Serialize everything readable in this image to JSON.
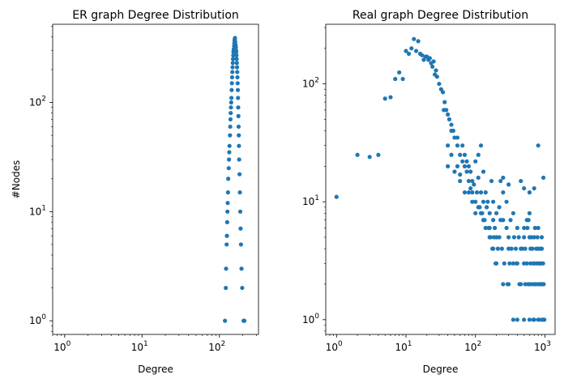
{
  "chart_data": [
    {
      "type": "scatter",
      "title": "ER graph Degree Distribution",
      "xlabel": "Degree",
      "ylabel": "#Nodes",
      "xscale": "log",
      "yscale": "log",
      "xlim": [
        0.7,
        320
      ],
      "ylim": [
        0.75,
        520
      ],
      "xticks": [
        {
          "value": 1,
          "base": "10",
          "exp": "0"
        },
        {
          "value": 10,
          "base": "10",
          "exp": "1"
        },
        {
          "value": 100,
          "base": "10",
          "exp": "2"
        }
      ],
      "yticks": [
        {
          "value": 1,
          "base": "10",
          "exp": "0"
        },
        {
          "value": 10,
          "base": "10",
          "exp": "1"
        },
        {
          "value": 100,
          "base": "10",
          "exp": "2"
        }
      ],
      "marker_color": "#1f77b4",
      "grid": false,
      "points": [
        [
          118,
          1
        ],
        [
          121,
          2
        ],
        [
          122,
          3
        ],
        [
          124,
          5
        ],
        [
          125,
          6
        ],
        [
          126,
          8
        ],
        [
          127,
          10
        ],
        [
          128,
          12
        ],
        [
          129,
          15
        ],
        [
          130,
          20
        ],
        [
          132,
          25
        ],
        [
          133,
          30
        ],
        [
          134,
          35
        ],
        [
          135,
          40
        ],
        [
          137,
          50
        ],
        [
          138,
          60
        ],
        [
          139,
          70
        ],
        [
          140,
          80
        ],
        [
          141,
          90
        ],
        [
          142,
          100
        ],
        [
          143,
          110
        ],
        [
          144,
          130
        ],
        [
          145,
          150
        ],
        [
          146,
          170
        ],
        [
          147,
          190
        ],
        [
          148,
          210
        ],
        [
          149,
          230
        ],
        [
          150,
          250
        ],
        [
          151,
          270
        ],
        [
          152,
          290
        ],
        [
          153,
          300
        ],
        [
          154,
          310
        ],
        [
          155,
          330
        ],
        [
          156,
          350
        ],
        [
          157,
          370
        ],
        [
          158,
          380
        ],
        [
          159,
          390
        ],
        [
          160,
          360
        ],
        [
          161,
          340
        ],
        [
          162,
          330
        ],
        [
          163,
          320
        ],
        [
          164,
          300
        ],
        [
          165,
          290
        ],
        [
          166,
          270
        ],
        [
          167,
          250
        ],
        [
          168,
          230
        ],
        [
          169,
          210
        ],
        [
          170,
          190
        ],
        [
          171,
          170
        ],
        [
          172,
          150
        ],
        [
          173,
          130
        ],
        [
          174,
          110
        ],
        [
          175,
          90
        ],
        [
          176,
          75
        ],
        [
          177,
          60
        ],
        [
          178,
          50
        ],
        [
          179,
          40
        ],
        [
          180,
          30
        ],
        [
          182,
          22
        ],
        [
          184,
          15
        ],
        [
          186,
          10
        ],
        [
          188,
          7
        ],
        [
          190,
          5
        ],
        [
          193,
          3
        ],
        [
          197,
          2
        ],
        [
          205,
          1
        ],
        [
          210,
          1
        ]
      ]
    },
    {
      "type": "scatter",
      "title": "Real graph Degree Distribution",
      "xlabel": "Degree",
      "ylabel": "",
      "xscale": "log",
      "yscale": "log",
      "xlim": [
        0.7,
        1400
      ],
      "ylim": [
        0.75,
        320
      ],
      "xticks": [
        {
          "value": 1,
          "base": "10",
          "exp": "0"
        },
        {
          "value": 10,
          "base": "10",
          "exp": "1"
        },
        {
          "value": 100,
          "base": "10",
          "exp": "2"
        },
        {
          "value": 1000,
          "base": "10",
          "exp": "3"
        }
      ],
      "yticks": [
        {
          "value": 1,
          "base": "10",
          "exp": "0"
        },
        {
          "value": 10,
          "base": "10",
          "exp": "1"
        },
        {
          "value": 100,
          "base": "10",
          "exp": "2"
        }
      ],
      "marker_color": "#1f77b4",
      "grid": false,
      "points": [
        [
          1,
          11
        ],
        [
          2,
          25
        ],
        [
          3,
          24
        ],
        [
          4,
          25
        ],
        [
          5,
          75
        ],
        [
          6,
          77
        ],
        [
          7,
          110
        ],
        [
          8,
          125
        ],
        [
          9,
          110
        ],
        [
          10,
          190
        ],
        [
          11,
          180
        ],
        [
          12,
          200
        ],
        [
          13,
          240
        ],
        [
          14,
          190
        ],
        [
          15,
          230
        ],
        [
          16,
          180
        ],
        [
          17,
          175
        ],
        [
          18,
          160
        ],
        [
          19,
          170
        ],
        [
          20,
          170
        ],
        [
          21,
          160
        ],
        [
          22,
          165
        ],
        [
          23,
          150
        ],
        [
          24,
          140
        ],
        [
          25,
          155
        ],
        [
          26,
          120
        ],
        [
          27,
          130
        ],
        [
          28,
          115
        ],
        [
          30,
          100
        ],
        [
          32,
          90
        ],
        [
          34,
          85
        ],
        [
          36,
          70
        ],
        [
          38,
          60
        ],
        [
          40,
          55
        ],
        [
          42,
          50
        ],
        [
          45,
          45
        ],
        [
          48,
          40
        ],
        [
          50,
          35
        ],
        [
          55,
          30
        ],
        [
          60,
          25
        ],
        [
          65,
          22
        ],
        [
          70,
          20
        ],
        [
          75,
          18
        ],
        [
          80,
          15
        ],
        [
          85,
          13
        ],
        [
          90,
          12
        ],
        [
          100,
          10
        ],
        [
          110,
          9
        ],
        [
          120,
          8
        ],
        [
          130,
          7
        ],
        [
          140,
          6
        ],
        [
          160,
          5
        ],
        [
          180,
          4
        ],
        [
          200,
          3
        ],
        [
          250,
          2
        ],
        [
          300,
          2
        ],
        [
          350,
          1
        ],
        [
          400,
          1
        ],
        [
          500,
          1
        ],
        [
          600,
          1
        ],
        [
          700,
          1
        ],
        [
          800,
          1
        ],
        [
          900,
          1
        ],
        [
          40,
          30
        ],
        [
          45,
          25
        ],
        [
          55,
          20
        ],
        [
          60,
          15
        ],
        [
          70,
          12
        ],
        [
          80,
          20
        ],
        [
          90,
          15
        ],
        [
          100,
          8
        ],
        [
          110,
          25
        ],
        [
          120,
          30
        ],
        [
          130,
          18
        ],
        [
          140,
          12
        ],
        [
          150,
          10
        ],
        [
          160,
          8
        ],
        [
          170,
          15
        ],
        [
          180,
          10
        ],
        [
          190,
          6
        ],
        [
          200,
          8
        ],
        [
          220,
          5
        ],
        [
          240,
          4
        ],
        [
          250,
          12
        ],
        [
          280,
          10
        ],
        [
          300,
          5
        ],
        [
          320,
          7
        ],
        [
          350,
          8
        ],
        [
          380,
          4
        ],
        [
          400,
          6
        ],
        [
          420,
          5
        ],
        [
          450,
          4
        ],
        [
          500,
          3
        ],
        [
          550,
          7
        ],
        [
          600,
          5
        ],
        [
          650,
          2
        ],
        [
          700,
          3
        ],
        [
          750,
          4
        ],
        [
          800,
          2
        ],
        [
          850,
          3
        ],
        [
          900,
          5
        ],
        [
          40,
          20
        ],
        [
          50,
          18
        ],
        [
          60,
          17
        ],
        [
          70,
          25
        ],
        [
          80,
          12
        ],
        [
          90,
          10
        ],
        [
          100,
          22
        ],
        [
          110,
          16
        ],
        [
          120,
          12
        ],
        [
          130,
          10
        ],
        [
          160,
          6
        ],
        [
          180,
          7
        ],
        [
          200,
          5
        ],
        [
          220,
          9
        ],
        [
          250,
          7
        ],
        [
          280,
          6
        ],
        [
          300,
          4
        ],
        [
          350,
          3
        ],
        [
          400,
          3
        ],
        [
          450,
          2
        ],
        [
          500,
          5
        ],
        [
          550,
          3
        ],
        [
          600,
          2
        ],
        [
          700,
          2
        ],
        [
          800,
          6
        ],
        [
          900,
          2
        ],
        [
          35,
          60
        ],
        [
          45,
          40
        ],
        [
          55,
          35
        ],
        [
          65,
          30
        ],
        [
          75,
          22
        ],
        [
          85,
          18
        ],
        [
          95,
          14
        ],
        [
          105,
          12
        ],
        [
          115,
          9
        ],
        [
          125,
          8
        ],
        [
          135,
          7
        ],
        [
          145,
          9
        ],
        [
          155,
          6
        ],
        [
          165,
          5
        ],
        [
          175,
          4
        ],
        [
          185,
          5
        ],
        [
          195,
          3
        ],
        [
          210,
          4
        ],
        [
          230,
          7
        ],
        [
          260,
          3
        ],
        [
          290,
          2
        ],
        [
          310,
          3
        ],
        [
          330,
          4
        ],
        [
          360,
          5
        ],
        [
          390,
          3
        ],
        [
          430,
          2
        ],
        [
          470,
          4
        ],
        [
          520,
          2
        ],
        [
          570,
          2
        ],
        [
          620,
          3
        ],
        [
          680,
          1
        ],
        [
          740,
          2
        ],
        [
          820,
          1
        ],
        [
          880,
          2
        ],
        [
          950,
          1
        ],
        [
          500,
          6
        ],
        [
          520,
          4
        ],
        [
          560,
          6
        ],
        [
          580,
          7
        ],
        [
          600,
          8
        ],
        [
          620,
          4
        ],
        [
          640,
          5
        ],
        [
          660,
          4
        ],
        [
          680,
          3
        ],
        [
          700,
          5
        ],
        [
          720,
          6
        ],
        [
          760,
          3
        ],
        [
          780,
          5
        ],
        [
          800,
          4
        ],
        [
          820,
          3
        ],
        [
          840,
          2
        ],
        [
          860,
          4
        ],
        [
          880,
          3
        ],
        [
          900,
          4
        ],
        [
          920,
          2
        ],
        [
          940,
          3
        ],
        [
          960,
          2
        ],
        [
          980,
          1
        ],
        [
          800,
          30
        ],
        [
          950,
          16
        ],
        [
          700,
          13
        ],
        [
          600,
          12
        ],
        [
          500,
          13
        ],
        [
          450,
          15
        ],
        [
          300,
          14
        ],
        [
          250,
          16
        ],
        [
          230,
          15
        ]
      ]
    }
  ]
}
